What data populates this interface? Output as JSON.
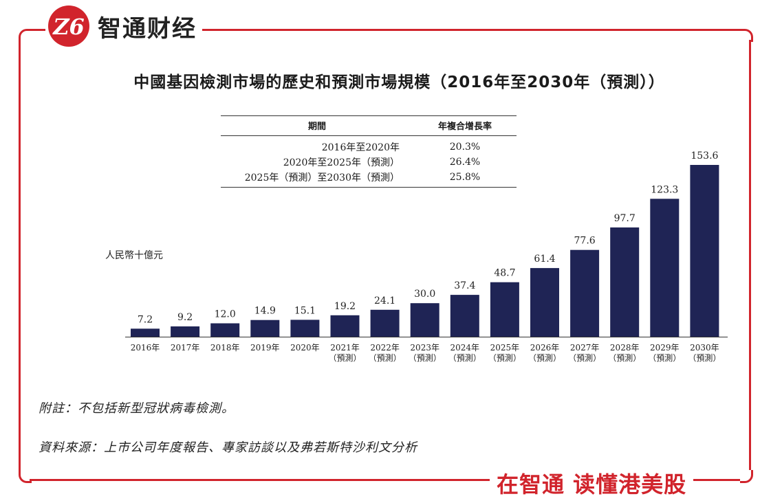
{
  "brand": {
    "logo_name": "智通财经",
    "logo_mark": "Z6",
    "slogan": "在智通  读懂港美股"
  },
  "colors": {
    "frame": "#d1242c",
    "bar": "#1f2455"
  },
  "cagr_table": {
    "headers": [
      "期間",
      "年複合增長率"
    ],
    "rows": [
      {
        "period": "2016年至2020年",
        "rate": "20.3%"
      },
      {
        "period": "2020年至2025年（預測）",
        "rate": "26.4%"
      },
      {
        "period": "2025年（預測）至2030年（預測）",
        "rate": "25.8%"
      }
    ]
  },
  "chart_data": {
    "type": "bar",
    "title": "中國基因檢測市場的歷史和預測市場規模（2016年至2030年（預測））",
    "ylabel": "人民幣十億元",
    "categories": [
      "2016年",
      "2017年",
      "2018年",
      "2019年",
      "2020年",
      "2021年",
      "2022年",
      "2023年",
      "2024年",
      "2025年",
      "2026年",
      "2027年",
      "2028年",
      "2029年",
      "2030年"
    ],
    "category_sublabels": [
      "",
      "",
      "",
      "",
      "",
      "（預測）",
      "（預測）",
      "（預測）",
      "（預測）",
      "（預測）",
      "（預測）",
      "（預測）",
      "（預測）",
      "（預測）",
      "（預測）"
    ],
    "values": [
      7.2,
      9.2,
      12.0,
      14.9,
      15.1,
      19.2,
      24.1,
      30.0,
      37.4,
      48.7,
      61.4,
      77.6,
      97.7,
      123.3,
      153.6
    ],
    "value_labels": [
      "7.2",
      "9.2",
      "12.0",
      "14.9",
      "15.1",
      "19.2",
      "24.1",
      "30.0",
      "37.4",
      "48.7",
      "61.4",
      "77.6",
      "97.7",
      "123.3",
      "153.6"
    ],
    "ylim": [
      0,
      153.6
    ],
    "grid": false,
    "legend": "none"
  },
  "notes": {
    "footnote": "附註：不包括新型冠狀病毒檢測。",
    "source": "資料來源：上市公司年度報告、專家訪談以及弗若斯特沙利文分析"
  }
}
